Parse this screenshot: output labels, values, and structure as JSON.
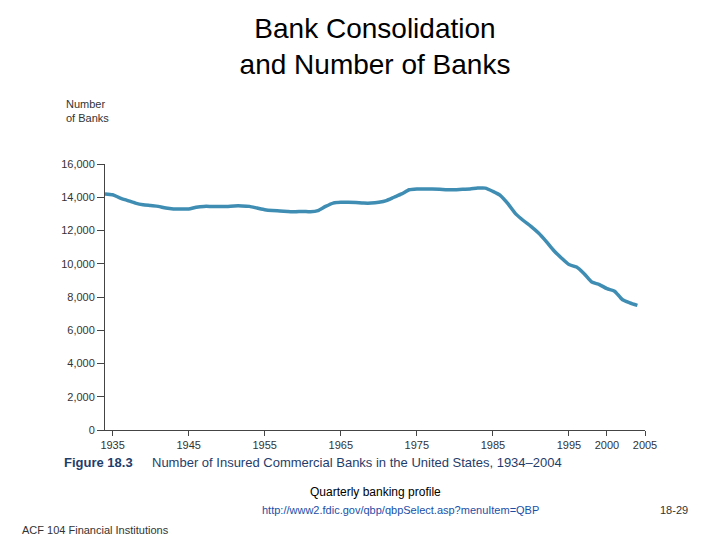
{
  "chart_data": {
    "type": "line",
    "title": "Bank Consolidation\nand Number of Banks",
    "ylabel": "Number\nof Banks",
    "annotations": [
      "Figure 18.3",
      "Number of Insured Commercial Banks in the United States, 1934–2004",
      "Quarterly banking profile",
      "http://www2.fdic.gov/qbp/qbpSelect.asp?menuItem=QBP",
      "ACF 104 Financial Institutions",
      "18-29"
    ],
    "x": [
      1934,
      1935,
      1936,
      1937,
      1938,
      1939,
      1940,
      1941,
      1942,
      1943,
      1944,
      1945,
      1946,
      1947,
      1948,
      1949,
      1950,
      1951,
      1952,
      1953,
      1954,
      1955,
      1956,
      1957,
      1958,
      1959,
      1960,
      1961,
      1962,
      1963,
      1964,
      1965,
      1966,
      1967,
      1968,
      1969,
      1970,
      1971,
      1972,
      1973,
      1974,
      1975,
      1976,
      1977,
      1978,
      1979,
      1980,
      1981,
      1982,
      1983,
      1984,
      1985,
      1986,
      1987,
      1988,
      1989,
      1990,
      1991,
      1992,
      1993,
      1994,
      1995,
      1996,
      1997,
      1998,
      1999,
      2000,
      2001,
      2002,
      2003,
      2004
    ],
    "values": [
      14200,
      14150,
      13950,
      13800,
      13650,
      13550,
      13500,
      13450,
      13350,
      13300,
      13300,
      13300,
      13400,
      13450,
      13450,
      13450,
      13450,
      13480,
      13480,
      13450,
      13350,
      13250,
      13200,
      13180,
      13150,
      13130,
      13150,
      13130,
      13200,
      13450,
      13650,
      13700,
      13700,
      13680,
      13650,
      13650,
      13700,
      13800,
      14000,
      14200,
      14450,
      14500,
      14500,
      14500,
      14480,
      14450,
      14450,
      14480,
      14500,
      14550,
      14550,
      14350,
      14100,
      13600,
      13000,
      12600,
      12250,
      11850,
      11350,
      10800,
      10350,
      9950,
      9800,
      9400,
      8900,
      8750,
      8500,
      8350,
      7850,
      7650,
      7500
    ],
    "color": "#3f8db3",
    "xlim": [
      1934,
      2005
    ],
    "xticks": [
      1935,
      1945,
      1955,
      1965,
      1975,
      1985,
      1995,
      2000,
      2005
    ],
    "ylim": [
      0,
      16000
    ],
    "yticks": [
      0,
      {
        "value": 2000,
        "label": "2,000"
      },
      {
        "value": 4000,
        "label": "4,000"
      },
      {
        "value": 6000,
        "label": "6,000"
      },
      {
        "value": 8000,
        "label": "8,000"
      },
      {
        "value": 10000,
        "label": "10,000"
      },
      {
        "value": 12000,
        "label": "12,000"
      },
      {
        "value": 14000,
        "label": "14,000"
      },
      {
        "value": 16000,
        "label": "16,000"
      }
    ],
    "grid": false
  }
}
